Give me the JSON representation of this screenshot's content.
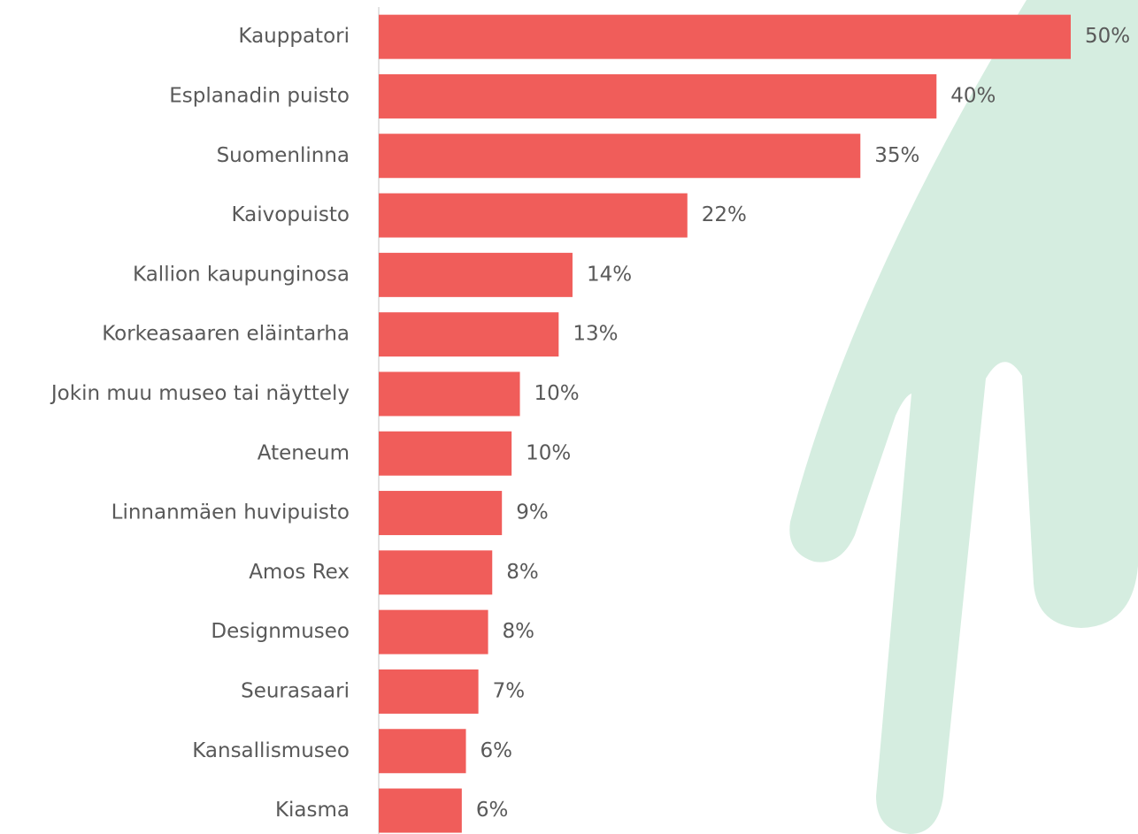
{
  "chart_data": {
    "type": "hbar",
    "categories": [
      "Kauppatori",
      "Esplanadin puisto",
      "Suomenlinna",
      "Kaivopuisto",
      "Kallion kaupunginosa",
      "Korkeasaaren eläintarha",
      "Jokin muu museo tai näyttely",
      "Ateneum",
      "Linnanmäen huvipuisto",
      "Amos Rex",
      "Designmuseo",
      "Seurasaari",
      "Kansallismuseo",
      "Kiasma"
    ],
    "values": [
      50,
      40.3,
      34.8,
      22.3,
      14,
      13,
      10.2,
      9.6,
      8.9,
      8.2,
      7.9,
      7.2,
      6.3,
      6.0
    ],
    "value_labels": [
      "50%",
      "40%",
      "35%",
      "22%",
      "14%",
      "13%",
      "10%",
      "10%",
      "9%",
      "8%",
      "8%",
      "7%",
      "6%",
      "6%"
    ],
    "color": "#f05d5a"
  }
}
